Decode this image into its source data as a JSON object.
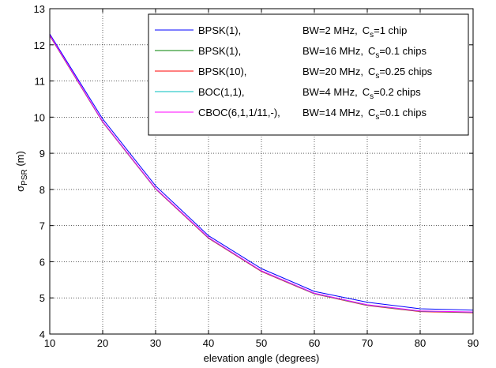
{
  "chart_data": {
    "type": "line",
    "xlabel": "elevation angle (degrees)",
    "ylabel": {
      "base": "σ",
      "sub": "PSR",
      "suffix": " (m)"
    },
    "xlim": [
      10,
      90
    ],
    "ylim": [
      4,
      13
    ],
    "xticks": [
      10,
      20,
      30,
      40,
      50,
      60,
      70,
      80,
      90
    ],
    "yticks": [
      4,
      5,
      6,
      7,
      8,
      9,
      10,
      11,
      12,
      13
    ],
    "grid": true,
    "legend_position": "top-right",
    "x": [
      10,
      20,
      30,
      40,
      50,
      60,
      70,
      80,
      90
    ],
    "series": [
      {
        "name": "BPSK(1),",
        "bw": "BW=2 MHz,",
        "cs_value": "=1 chip",
        "color": "#0000ff",
        "values": [
          12.3,
          9.95,
          8.1,
          6.72,
          5.81,
          5.18,
          4.88,
          4.7,
          4.66
        ]
      },
      {
        "name": "BPSK(1),",
        "bw": "BW=16 MHz,",
        "cs_value": "=0.1 chips",
        "color": "#008000",
        "values": [
          12.26,
          9.87,
          8.02,
          6.66,
          5.74,
          5.12,
          4.8,
          4.63,
          4.6
        ]
      },
      {
        "name": "BPSK(10),",
        "bw": "BW=20 MHz,",
        "cs_value": "=0.25 chips",
        "color": "#ff0000",
        "values": [
          12.25,
          9.86,
          8.01,
          6.65,
          5.73,
          5.11,
          4.79,
          4.62,
          4.59
        ]
      },
      {
        "name": "BOC(1,1),",
        "bw": "BW=4 MHz,",
        "cs_value": "=0.2 chips",
        "color": "#00bfbf",
        "values": [
          12.26,
          9.87,
          8.02,
          6.66,
          5.74,
          5.12,
          4.8,
          4.63,
          4.6
        ]
      },
      {
        "name": "CBOC(6,1,1/11,-),",
        "bw": "BW=14 MHz,",
        "cs_value": "=0.1 chips",
        "color": "#ff00ff",
        "values": [
          12.27,
          9.88,
          8.03,
          6.67,
          5.75,
          5.13,
          4.81,
          4.64,
          4.61
        ]
      }
    ],
    "cs_symbol": {
      "base": "C",
      "sub": "s"
    }
  }
}
